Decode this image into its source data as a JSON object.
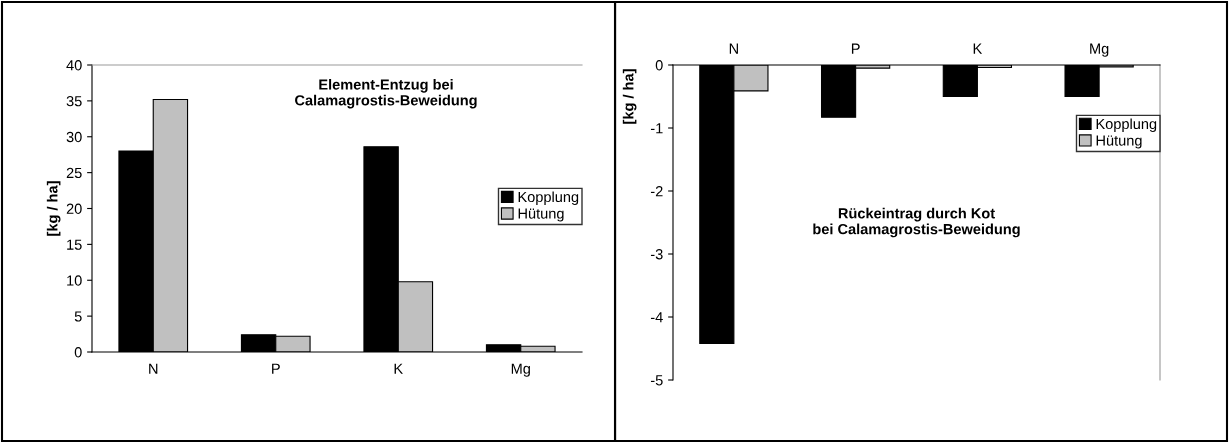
{
  "chart_data": [
    {
      "type": "bar",
      "title": "Element-Entzug bei\nCalamagrostis-Beweidung",
      "ylabel": "[kg / ha]",
      "categories": [
        "N",
        "P",
        "K",
        "Mg"
      ],
      "series": [
        {
          "name": "Kopplung",
          "color": "#000000",
          "values": [
            28.0,
            2.4,
            28.6,
            1.0
          ]
        },
        {
          "name": "Hütung",
          "color": "#c0c0c0",
          "values": [
            35.2,
            2.2,
            9.8,
            0.8
          ]
        }
      ],
      "ylim": [
        0,
        40
      ],
      "yticks": [
        0,
        5,
        10,
        15,
        20,
        25,
        30,
        35,
        40
      ],
      "legend": "right",
      "grid": false
    },
    {
      "type": "bar",
      "title": "Rückeintrag durch Kot\nbei Calamagrostis-Beweidung",
      "ylabel": "[kg / ha]",
      "categories": [
        "N",
        "P",
        "K",
        "Mg"
      ],
      "series": [
        {
          "name": "Kopplung",
          "color": "#000000",
          "values": [
            -4.42,
            -0.83,
            -0.5,
            -0.5
          ]
        },
        {
          "name": "Hütung",
          "color": "#c0c0c0",
          "values": [
            -0.41,
            -0.05,
            -0.04,
            -0.03
          ]
        }
      ],
      "ylim": [
        -5,
        0
      ],
      "yticks": [
        -5,
        -4,
        -3,
        -2,
        -1,
        0
      ],
      "legend": "top right",
      "grid": false
    }
  ]
}
